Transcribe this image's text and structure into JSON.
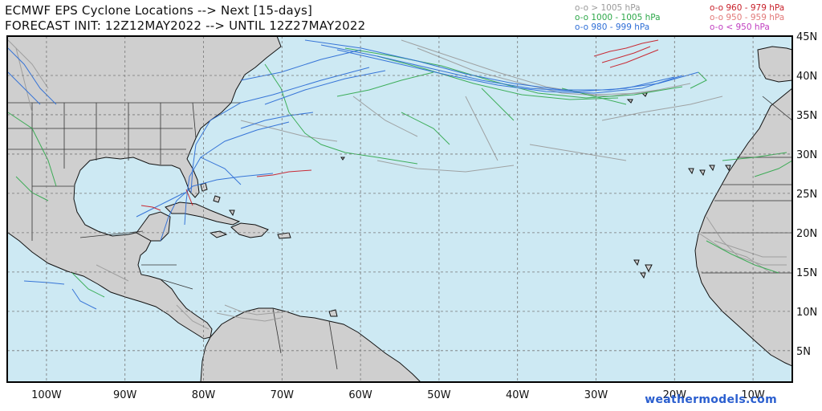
{
  "title": {
    "line1": "ECMWF EPS Cyclone Locations --> Next [15-days]",
    "line2": "FORECAST INIT: 12Z12MAY2022 --> UNTIL 12Z27MAY2022"
  },
  "legend": [
    {
      "label": "o-o > 1005 hPa",
      "color": "#9a9a9a"
    },
    {
      "label": "o-o 1000 - 1005 hPa",
      "color": "#2ea84a"
    },
    {
      "label": "o-o 980 - 999 hPa",
      "color": "#2f6fd6"
    },
    {
      "label": "o-o 960 - 979 hPa",
      "color": "#c8202a"
    },
    {
      "label": "o-o 950 - 959 hPa",
      "color": "#e27a7a"
    },
    {
      "label": "o-o < 950 hPa",
      "color": "#c040c0"
    }
  ],
  "map": {
    "lon_min": -105,
    "lon_max": -5,
    "lat_min": 1,
    "lat_max": 45,
    "ocean_color": "#cde9f3",
    "land_color": "#cfcfcf",
    "lon_ticks": [
      "100W",
      "90W",
      "80W",
      "70W",
      "60W",
      "50W",
      "40W",
      "30W",
      "20W",
      "10W"
    ],
    "lon_values": [
      -100,
      -90,
      -80,
      -70,
      -60,
      -50,
      -40,
      -30,
      -20,
      -10
    ],
    "lat_ticks": [
      "45N",
      "40N",
      "35N",
      "30N",
      "25N",
      "20N",
      "15N",
      "10N",
      "5N"
    ],
    "lat_values": [
      45,
      40,
      35,
      30,
      25,
      20,
      15,
      10,
      5
    ]
  },
  "brand": "weathermodels.com"
}
